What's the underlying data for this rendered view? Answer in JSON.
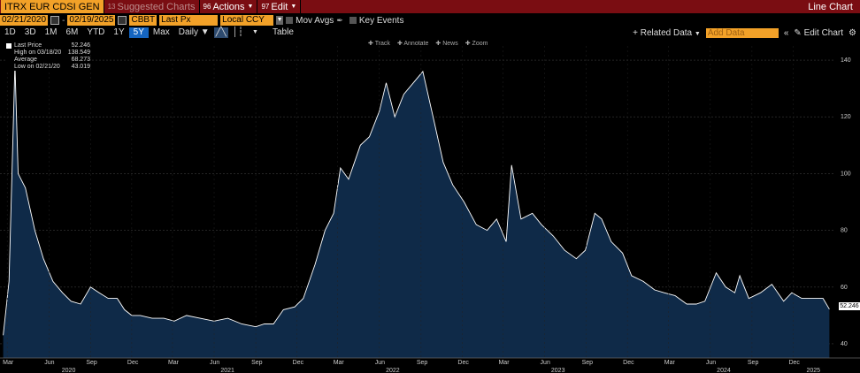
{
  "topbar": {
    "ticker": "ITRX EUR CDSI GEN",
    "suggested_num": "13",
    "suggested_label": "Suggested Charts",
    "actions_num": "96",
    "actions_label": "Actions",
    "edit_num": "97",
    "edit_label": "Edit",
    "title": "Line Chart"
  },
  "controls": {
    "start_date": "02/21/2020",
    "end_date": "02/19/2025",
    "source": "CBBT",
    "field": "Last Px",
    "currency": "Local CCY",
    "mov_avgs": "Mov Avgs",
    "key_events": "Key Events"
  },
  "periods": [
    "1D",
    "3D",
    "1M",
    "6M",
    "YTD",
    "1Y",
    "5Y",
    "Max"
  ],
  "active_period": "5Y",
  "toolbar": {
    "frequency": "Daily",
    "table": "Table",
    "related_data": "+ Related Data",
    "add_data_placeholder": "Add Data",
    "edit_chart": "Edit Chart"
  },
  "chart_tools": [
    "Track",
    "Annotate",
    "News",
    "Zoom"
  ],
  "legend": [
    {
      "label": "Last Price",
      "value": "52.246"
    },
    {
      "label": "High on 03/18/20",
      "value": "138.549"
    },
    {
      "label": "Average",
      "value": "68.273"
    },
    {
      "label": "Low on 02/21/20",
      "value": "43.019"
    }
  ],
  "last_value_label": "52.246",
  "colors": {
    "accent": "#f2a128",
    "bar": "#7a0d12",
    "area": "#0f2a48",
    "line": "#ffffff"
  },
  "chart_data": {
    "type": "area",
    "ylim": [
      35,
      145
    ],
    "yticks": [
      40,
      60,
      80,
      100,
      120,
      140
    ],
    "xtick_labels": [
      "Mar",
      "Jun",
      "Sep",
      "Dec",
      "Mar",
      "Jun",
      "Sep",
      "Dec",
      "Mar",
      "Jun",
      "Sep",
      "Dec",
      "Mar",
      "Jun",
      "Sep",
      "Dec",
      "Mar",
      "Jun",
      "Sep",
      "Dec"
    ],
    "year_labels": [
      "2020",
      "2021",
      "2022",
      "2023",
      "2024",
      "2025"
    ],
    "series": [
      {
        "x": [
          "2020-02-21",
          "2020-03-05",
          "2020-03-18",
          "2020-03-25",
          "2020-04-10",
          "2020-05-01",
          "2020-05-20",
          "2020-06-10",
          "2020-07-01",
          "2020-07-20",
          "2020-08-10",
          "2020-09-01",
          "2020-09-20",
          "2020-10-10",
          "2020-10-30",
          "2020-11-15",
          "2020-12-01",
          "2020-12-20",
          "2021-01-15",
          "2021-02-10",
          "2021-03-05",
          "2021-04-01",
          "2021-05-01",
          "2021-06-01",
          "2021-07-01",
          "2021-08-01",
          "2021-09-01",
          "2021-09-20",
          "2021-10-10",
          "2021-11-01",
          "2021-11-26",
          "2021-12-15",
          "2022-01-10",
          "2022-02-01",
          "2022-02-20",
          "2022-03-07",
          "2022-03-25",
          "2022-04-20",
          "2022-05-10",
          "2022-06-01",
          "2022-06-16",
          "2022-07-05",
          "2022-07-25",
          "2022-08-15",
          "2022-09-05",
          "2022-09-29",
          "2022-10-20",
          "2022-11-10",
          "2022-12-05",
          "2023-01-01",
          "2023-01-25",
          "2023-02-15",
          "2023-03-08",
          "2023-03-20",
          "2023-04-10",
          "2023-05-05",
          "2023-05-25",
          "2023-06-20",
          "2023-07-15",
          "2023-08-10",
          "2023-08-30",
          "2023-09-20",
          "2023-10-05",
          "2023-10-26",
          "2023-11-20",
          "2023-12-10",
          "2024-01-05",
          "2024-01-30",
          "2024-02-20",
          "2024-03-15",
          "2024-04-10",
          "2024-05-01",
          "2024-05-20",
          "2024-06-14",
          "2024-07-05",
          "2024-07-25",
          "2024-08-05",
          "2024-08-25",
          "2024-09-20",
          "2024-10-15",
          "2024-11-10",
          "2024-11-28",
          "2024-12-20",
          "2025-01-15",
          "2025-02-05",
          "2025-02-19"
        ],
        "y": [
          43.0,
          62,
          138.5,
          100,
          95,
          80,
          70,
          62,
          58,
          55,
          54,
          60,
          58,
          56,
          56,
          52,
          50,
          50,
          49,
          49,
          48,
          50,
          49,
          48,
          49,
          47,
          46,
          47,
          47,
          52,
          53,
          56,
          68,
          80,
          86,
          102,
          98,
          110,
          113,
          122,
          132,
          120,
          128,
          132,
          136,
          119,
          104,
          96,
          90,
          82,
          80,
          84,
          76,
          103,
          84,
          86,
          82,
          78,
          73,
          70,
          73,
          86,
          84,
          76,
          72,
          64,
          62,
          59,
          58,
          57,
          54,
          54,
          55,
          65,
          60,
          58,
          64,
          56,
          58,
          61,
          55,
          58,
          56,
          56,
          56,
          52.2
        ]
      }
    ]
  }
}
